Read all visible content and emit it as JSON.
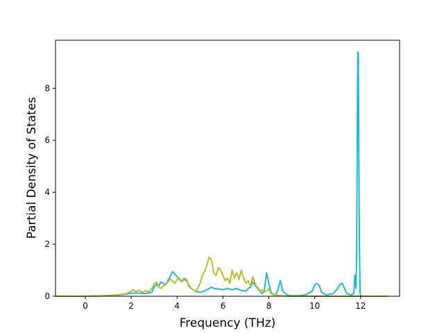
{
  "chart_data": {
    "type": "line",
    "xlabel": "Frequency (THz)",
    "ylabel": "Partial Density of States",
    "xlim": [
      -1.3,
      13.7
    ],
    "ylim": [
      0,
      9.85
    ],
    "grid": false,
    "x_ticks": [
      {
        "value": 0,
        "label": "0"
      },
      {
        "value": 2,
        "label": "2"
      },
      {
        "value": 4,
        "label": "4"
      },
      {
        "value": 6,
        "label": "6"
      },
      {
        "value": 8,
        "label": "8"
      },
      {
        "value": 10,
        "label": "10"
      },
      {
        "value": 12,
        "label": "12"
      }
    ],
    "y_ticks": [
      {
        "value": 0,
        "label": "0"
      },
      {
        "value": 2,
        "label": "2"
      },
      {
        "value": 4,
        "label": "4"
      },
      {
        "value": 6,
        "label": "6"
      },
      {
        "value": 8,
        "label": "8"
      }
    ],
    "series": [
      {
        "color": "#17becf",
        "x": [
          -1.3,
          0.0,
          0.5,
          1.0,
          1.5,
          1.8,
          2.0,
          2.3,
          2.6,
          2.9,
          3.0,
          3.1,
          3.2,
          3.3,
          3.4,
          3.5,
          3.6,
          3.7,
          3.8,
          3.9,
          4.0,
          4.1,
          4.2,
          4.3,
          4.4,
          4.5,
          4.6,
          4.8,
          5.0,
          5.2,
          5.4,
          5.5,
          5.6,
          5.8,
          6.0,
          6.2,
          6.4,
          6.6,
          6.8,
          7.0,
          7.1,
          7.2,
          7.3,
          7.4,
          7.5,
          7.6,
          7.7,
          7.8,
          7.9,
          8.0,
          8.1,
          8.2,
          8.3,
          8.4,
          8.5,
          8.6,
          8.8,
          9.0,
          9.3,
          9.6,
          9.9,
          10.0,
          10.1,
          10.2,
          10.3,
          10.5,
          10.8,
          11.0,
          11.1,
          11.2,
          11.3,
          11.4,
          11.6,
          11.7,
          11.75,
          11.8,
          11.83,
          11.86,
          11.88,
          11.9,
          11.92,
          11.95,
          11.98,
          12.02,
          12.1,
          12.3,
          13.2
        ],
        "y": [
          0.0,
          0.0,
          0.01,
          0.02,
          0.05,
          0.08,
          0.12,
          0.12,
          0.1,
          0.15,
          0.35,
          0.45,
          0.4,
          0.55,
          0.5,
          0.45,
          0.6,
          0.75,
          0.95,
          0.85,
          0.75,
          0.65,
          0.55,
          0.65,
          0.6,
          0.45,
          0.3,
          0.2,
          0.15,
          0.2,
          0.3,
          0.35,
          0.3,
          0.28,
          0.25,
          0.3,
          0.25,
          0.3,
          0.22,
          0.2,
          0.3,
          0.35,
          0.55,
          0.4,
          0.35,
          0.2,
          0.1,
          0.2,
          0.9,
          0.5,
          0.15,
          0.05,
          0.05,
          0.25,
          0.6,
          0.2,
          0.05,
          0.02,
          0.02,
          0.05,
          0.2,
          0.45,
          0.5,
          0.4,
          0.15,
          0.05,
          0.1,
          0.3,
          0.45,
          0.5,
          0.3,
          0.1,
          0.05,
          0.1,
          0.8,
          0.3,
          2.0,
          7.5,
          9.4,
          9.3,
          6.0,
          2.0,
          0.1,
          0.0,
          0.0,
          0.0,
          0.0
        ]
      },
      {
        "color": "#bcbd22",
        "x": [
          -1.3,
          0.0,
          0.5,
          1.0,
          1.5,
          1.8,
          2.0,
          2.1,
          2.2,
          2.3,
          2.4,
          2.5,
          2.6,
          2.7,
          2.8,
          2.9,
          3.0,
          3.1,
          3.2,
          3.3,
          3.4,
          3.5,
          3.6,
          3.7,
          3.8,
          3.9,
          4.0,
          4.1,
          4.2,
          4.3,
          4.4,
          4.5,
          4.6,
          4.7,
          4.8,
          4.9,
          5.0,
          5.1,
          5.2,
          5.3,
          5.4,
          5.5,
          5.6,
          5.7,
          5.8,
          5.9,
          6.0,
          6.1,
          6.2,
          6.3,
          6.4,
          6.5,
          6.6,
          6.7,
          6.8,
          6.9,
          7.0,
          7.1,
          7.2,
          7.3,
          7.4,
          7.5,
          7.6,
          7.7,
          7.8,
          7.9,
          8.0,
          8.1,
          8.3,
          8.5,
          9.0,
          10.0,
          11.0,
          12.0,
          13.2
        ],
        "y": [
          0.0,
          0.0,
          0.01,
          0.03,
          0.06,
          0.1,
          0.2,
          0.25,
          0.18,
          0.22,
          0.2,
          0.15,
          0.22,
          0.18,
          0.2,
          0.3,
          0.45,
          0.55,
          0.35,
          0.3,
          0.4,
          0.45,
          0.55,
          0.65,
          0.6,
          0.5,
          0.65,
          0.7,
          0.55,
          0.7,
          0.65,
          0.4,
          0.3,
          0.25,
          0.2,
          0.3,
          0.5,
          0.8,
          0.95,
          1.2,
          1.5,
          1.4,
          0.9,
          0.8,
          1.1,
          1.0,
          0.8,
          0.6,
          0.7,
          0.5,
          1.0,
          0.7,
          0.9,
          0.65,
          1.0,
          0.7,
          0.5,
          0.6,
          0.4,
          0.75,
          0.5,
          0.3,
          0.2,
          0.25,
          0.15,
          0.2,
          0.3,
          0.1,
          0.05,
          0.02,
          0.0,
          0.0,
          0.0,
          0.0,
          0.0
        ]
      }
    ]
  }
}
